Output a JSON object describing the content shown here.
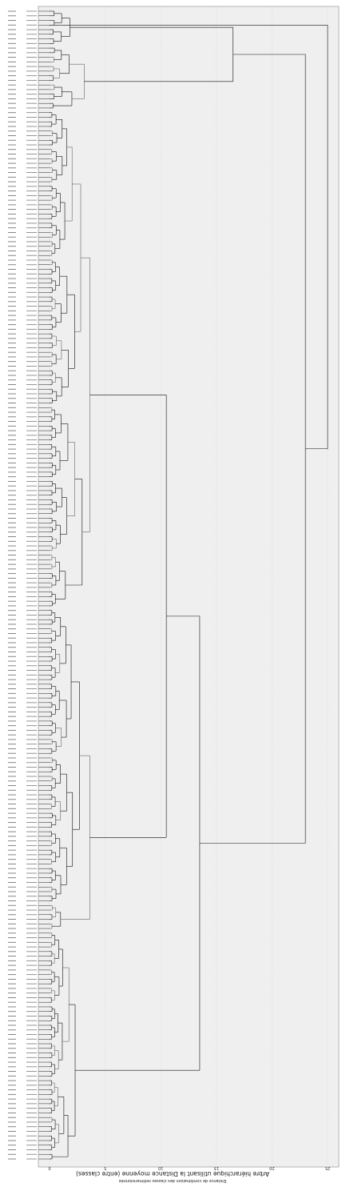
{
  "figure": {
    "xlabel": "Arbre hiérarchique utilisant la Distance moyenne (entre classes)",
    "sublabel": "Distance de combinaison des classes redimensionnée",
    "ylabel": "",
    "x_ticks": [
      "0",
      "5",
      "10",
      "15",
      "20",
      "25"
    ],
    "leaf_count": 250,
    "colors": {
      "background": "#efefef",
      "grid": "#c8c8c8",
      "branch": "#111111",
      "frame": "#888888"
    }
  },
  "diagram": {
    "type": "dendrogram",
    "orientation": "leaves-left",
    "x_range": [
      0,
      25
    ],
    "description_note": "Row labels are too small to read; rendered as placeholder glyph marks only."
  }
}
